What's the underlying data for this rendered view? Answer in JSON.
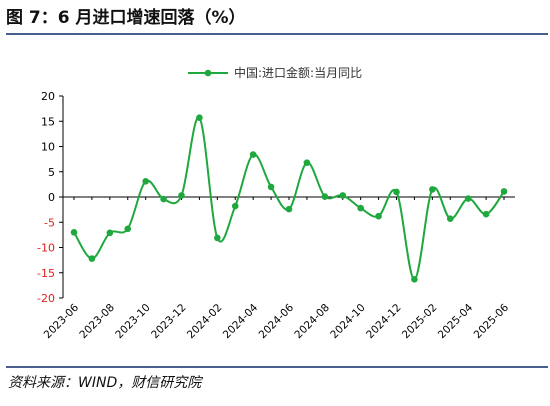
{
  "figure": {
    "title": "图 7：6 月进口增速回落（%）",
    "source": "资料来源：WIND，财信研究院"
  },
  "colors": {
    "series": "#1fa83e",
    "negative_tick": "#e0201b",
    "axis": "#000000"
  },
  "chart_data": {
    "type": "line",
    "title": "",
    "xlabel": "",
    "ylabel": "",
    "ylim": [
      -20,
      20
    ],
    "y_ticks": [
      20,
      15,
      10,
      5,
      0,
      -5,
      -10,
      -15,
      -20
    ],
    "x_tick_labels": [
      "2023-06",
      "2023-08",
      "2023-10",
      "2023-12",
      "2024-02",
      "2024-04",
      "2024-06",
      "2024-08",
      "2024-10",
      "2024-12",
      "2025-02",
      "2025-04",
      "2025-06"
    ],
    "legend_position": "top-center",
    "grid": false,
    "smooth": true,
    "x": [
      "2023-06",
      "2023-07",
      "2023-08",
      "2023-09",
      "2023-10",
      "2023-11",
      "2023-12",
      "2024-01",
      "2024-02",
      "2024-03",
      "2024-04",
      "2024-05",
      "2024-06",
      "2024-07",
      "2024-08",
      "2024-09",
      "2024-10",
      "2024-11",
      "2024-12",
      "2025-01",
      "2025-02",
      "2025-03",
      "2025-04",
      "2025-05",
      "2025-06"
    ],
    "series": [
      {
        "name": "中国:进口金额:当月同比",
        "values": [
          -7.0,
          -12.2,
          -7.1,
          -6.3,
          3.1,
          -0.4,
          0.3,
          15.7,
          -8.1,
          -1.8,
          8.4,
          2.0,
          -2.4,
          6.8,
          0.1,
          0.3,
          -2.2,
          -3.8,
          1.0,
          -16.3,
          1.5,
          -4.3,
          -0.3,
          -3.4,
          1.1
        ]
      }
    ]
  }
}
